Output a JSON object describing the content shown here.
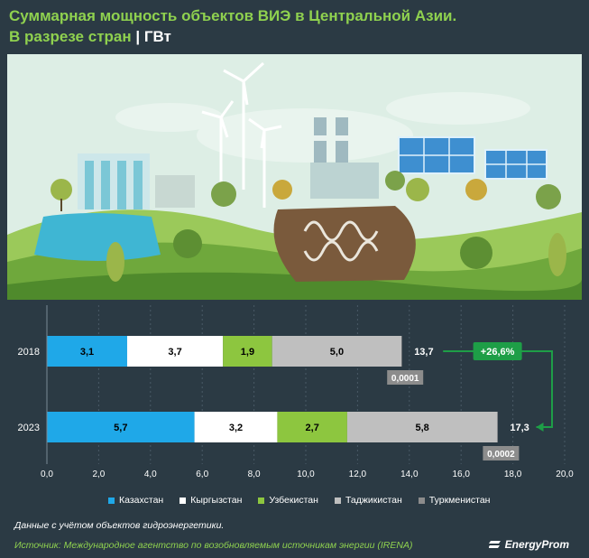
{
  "header": {
    "title": "Суммарная мощность объектов ВИЭ в Центральной Азии.",
    "subtitle_main": "В разрезе стран",
    "subtitle_unit": "| ГВт"
  },
  "colors": {
    "background": "#2b3a44",
    "title_green": "#8fd14f",
    "kazakhstan": "#1fa8e8",
    "kyrgyzstan": "#ffffff",
    "uzbekistan": "#8dc63f",
    "tajikistan": "#bfbfbf",
    "turkmenistan": "#8c8c8c",
    "badge": "#1e9e47"
  },
  "chart_data": {
    "type": "bar",
    "orientation": "horizontal",
    "stacked": true,
    "categories": [
      "2018",
      "2023"
    ],
    "series": [
      {
        "name": "Казахстан",
        "values": [
          3.1,
          5.7
        ],
        "labels": [
          "3,1",
          "5,7"
        ]
      },
      {
        "name": "Кыргызстан",
        "values": [
          3.7,
          3.2
        ],
        "labels": [
          "3,7",
          "3,2"
        ]
      },
      {
        "name": "Узбекистан",
        "values": [
          1.9,
          2.7
        ],
        "labels": [
          "1,9",
          "2,7"
        ]
      },
      {
        "name": "Таджикистан",
        "values": [
          5.0,
          5.8
        ],
        "labels": [
          "5,0",
          "5,8"
        ]
      },
      {
        "name": "Туркменистан",
        "values": [
          0.0001,
          0.0002
        ],
        "labels": [
          "0,0001",
          "0,0002"
        ]
      }
    ],
    "totals": [
      13.7,
      17.3
    ],
    "total_labels": [
      "13,7",
      "17,3"
    ],
    "change_label": "+26,6%",
    "xlim": [
      0,
      20
    ],
    "xticks": [
      "0,0",
      "2,0",
      "4,0",
      "6,0",
      "8,0",
      "10,0",
      "12,0",
      "14,0",
      "16,0",
      "18,0",
      "20,0"
    ],
    "grid": true,
    "legend_position": "bottom"
  },
  "footer": {
    "note": "Данные с учётом объектов гидроэнергетики.",
    "source": "Источник: Международное агентство по возобновляемым источникам энергии (IRENA)",
    "brand": "EnergyProm"
  }
}
